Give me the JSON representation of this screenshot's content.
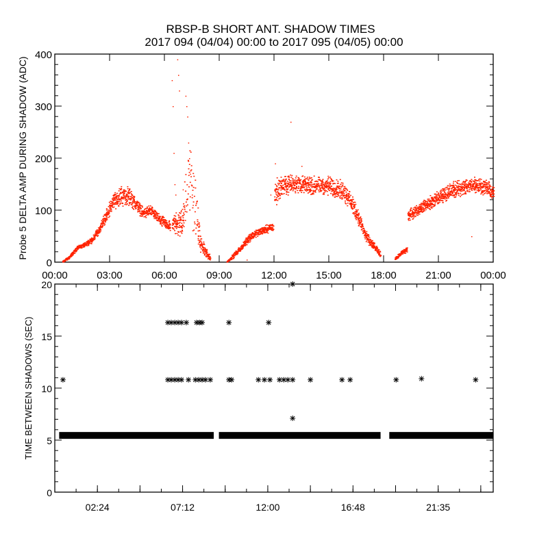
{
  "title": "RBSP-B SHORT ANT. SHADOW TIMES",
  "subtitle": "2017 094 (04/04) 00:00 to 2017 095 (04/05) 00:00",
  "colors": {
    "top_points": "#ff2200",
    "bottom_points": "#000000",
    "axes": "#000000"
  },
  "chart_data": [
    {
      "type": "scatter",
      "ylabel": "Probe 5 DELTA AMP DURING SHADOW (ADC)",
      "xlabel": "",
      "xlim_hours": [
        0,
        24
      ],
      "ylim": [
        0,
        400
      ],
      "x_tick_labels": [
        "00:00",
        "03:00",
        "06:00",
        "09:00",
        "12:00",
        "15:00",
        "18:00",
        "21:00",
        "00:00"
      ],
      "x_tick_hours": [
        0,
        3,
        6,
        9,
        12,
        15,
        18,
        21,
        24
      ],
      "y_tick_labels": [
        "0",
        "100",
        "200",
        "300",
        "400"
      ],
      "y_ticks": [
        0,
        100,
        200,
        300,
        400
      ],
      "grid": false,
      "marker": "dot",
      "envelope_segments": [
        {
          "hours": [
            0.4,
            0.8,
            1.2,
            1.6,
            2.0,
            2.4,
            2.8,
            3.2,
            3.6,
            4.0,
            4.4,
            4.8,
            5.2,
            5.6,
            6.0,
            6.3
          ],
          "low": [
            0,
            8,
            25,
            30,
            38,
            55,
            80,
            105,
            110,
            110,
            100,
            85,
            90,
            75,
            65,
            58
          ],
          "high": [
            3,
            15,
            32,
            38,
            50,
            70,
            105,
            135,
            145,
            145,
            125,
            105,
            110,
            95,
            85,
            80
          ]
        },
        {
          "hours": [
            6.4,
            6.7,
            7.0,
            7.3,
            7.6,
            7.9,
            8.2,
            8.5
          ],
          "low": [
            60,
            50,
            50,
            100,
            50,
            20,
            10,
            5
          ],
          "high": [
            90,
            100,
            120,
            250,
            200,
            60,
            30,
            12
          ]
        },
        {
          "hours": [
            9.4,
            9.8,
            10.2,
            10.6,
            11.0,
            11.4,
            11.8,
            11.95
          ],
          "low": [
            0,
            10,
            25,
            40,
            50,
            55,
            60,
            62
          ],
          "high": [
            3,
            20,
            35,
            55,
            65,
            70,
            75,
            78
          ]
        },
        {
          "hours": [
            12.0,
            12.4,
            13.0,
            14.0,
            15.0,
            15.8,
            16.2,
            16.6,
            17.0,
            17.4,
            17.8
          ],
          "low": [
            105,
            130,
            135,
            130,
            130,
            120,
            100,
            70,
            40,
            25,
            10
          ],
          "high": [
            160,
            165,
            170,
            165,
            165,
            155,
            130,
            100,
            60,
            40,
            20
          ]
        },
        {
          "hours": [
            18.6,
            19.0,
            19.25
          ],
          "low": [
            5,
            15,
            20
          ],
          "high": [
            10,
            25,
            30
          ]
        },
        {
          "hours": [
            19.3,
            20.0,
            20.6,
            21.2,
            21.8,
            22.4,
            23.0,
            23.6,
            24.0
          ],
          "low": [
            80,
            95,
            105,
            115,
            125,
            130,
            135,
            130,
            120
          ],
          "high": [
            100,
            115,
            130,
            145,
            155,
            160,
            165,
            160,
            145
          ]
        }
      ],
      "outliers": [
        [
          6.4,
          350
        ],
        [
          6.45,
          300
        ],
        [
          6.5,
          210
        ],
        [
          6.55,
          150
        ],
        [
          6.6,
          130
        ],
        [
          6.7,
          390
        ],
        [
          6.75,
          360
        ],
        [
          6.8,
          330
        ],
        [
          6.9,
          100
        ],
        [
          7.0,
          140
        ],
        [
          7.15,
          320
        ],
        [
          7.2,
          300
        ],
        [
          7.25,
          280
        ],
        [
          7.3,
          230
        ],
        [
          7.35,
          200
        ],
        [
          7.4,
          170
        ],
        [
          7.5,
          130
        ],
        [
          7.55,
          110
        ],
        [
          12.9,
          270
        ],
        [
          11.8,
          130
        ],
        [
          22.8,
          50
        ],
        [
          10.5,
          5
        ],
        [
          12.05,
          190
        ],
        [
          13.5,
          185
        ]
      ]
    },
    {
      "type": "scatter",
      "ylabel": "TIME BETWEEN SHADOWS (SEC)",
      "xlabel": "",
      "xlim_hours": [
        0,
        24.7
      ],
      "ylim": [
        0,
        20
      ],
      "x_tick_labels": [
        "02:24",
        "07:12",
        "12:00",
        "16:48",
        "21:35"
      ],
      "x_tick_hours": [
        2.4,
        4.8,
        7.2,
        9.6,
        12.0,
        14.4,
        16.8,
        19.2,
        21.6,
        24.0
      ],
      "x_labeled_tick_hours": [
        2.4,
        7.2,
        12.0,
        16.8,
        21.6
      ],
      "y_tick_labels": [
        "0",
        "5",
        "10",
        "15",
        "20"
      ],
      "y_ticks": [
        0,
        5,
        10,
        15,
        20
      ],
      "grid": false,
      "marker": "asterisk",
      "band_value": 5.45,
      "band_segments_hours": [
        [
          0.4,
          8.8
        ],
        [
          9.4,
          18.2
        ],
        [
          19.0,
          24.7
        ]
      ],
      "points": [
        [
          0.46,
          10.8
        ],
        [
          6.37,
          10.8
        ],
        [
          6.56,
          10.8
        ],
        [
          6.76,
          10.8
        ],
        [
          6.95,
          10.8
        ],
        [
          7.14,
          10.8
        ],
        [
          7.53,
          10.8
        ],
        [
          7.92,
          10.8
        ],
        [
          8.11,
          10.8
        ],
        [
          8.3,
          10.8
        ],
        [
          8.49,
          10.8
        ],
        [
          8.76,
          10.8
        ],
        [
          9.81,
          10.8
        ],
        [
          9.96,
          10.8
        ],
        [
          11.47,
          10.8
        ],
        [
          11.81,
          10.8
        ],
        [
          12.12,
          10.8
        ],
        [
          12.66,
          10.8
        ],
        [
          12.9,
          10.8
        ],
        [
          13.13,
          10.8
        ],
        [
          13.4,
          10.8
        ],
        [
          14.4,
          10.8
        ],
        [
          16.18,
          10.8
        ],
        [
          16.64,
          10.8
        ],
        [
          19.23,
          10.8
        ],
        [
          20.66,
          10.9
        ],
        [
          23.71,
          10.8
        ],
        [
          6.37,
          16.3
        ],
        [
          6.56,
          16.3
        ],
        [
          6.76,
          16.3
        ],
        [
          6.95,
          16.3
        ],
        [
          7.14,
          16.3
        ],
        [
          7.41,
          16.3
        ],
        [
          7.99,
          16.3
        ],
        [
          8.15,
          16.3
        ],
        [
          8.3,
          16.3
        ],
        [
          9.81,
          16.3
        ],
        [
          12.05,
          16.3
        ],
        [
          13.4,
          20.0
        ],
        [
          13.4,
          7.1
        ]
      ]
    }
  ]
}
